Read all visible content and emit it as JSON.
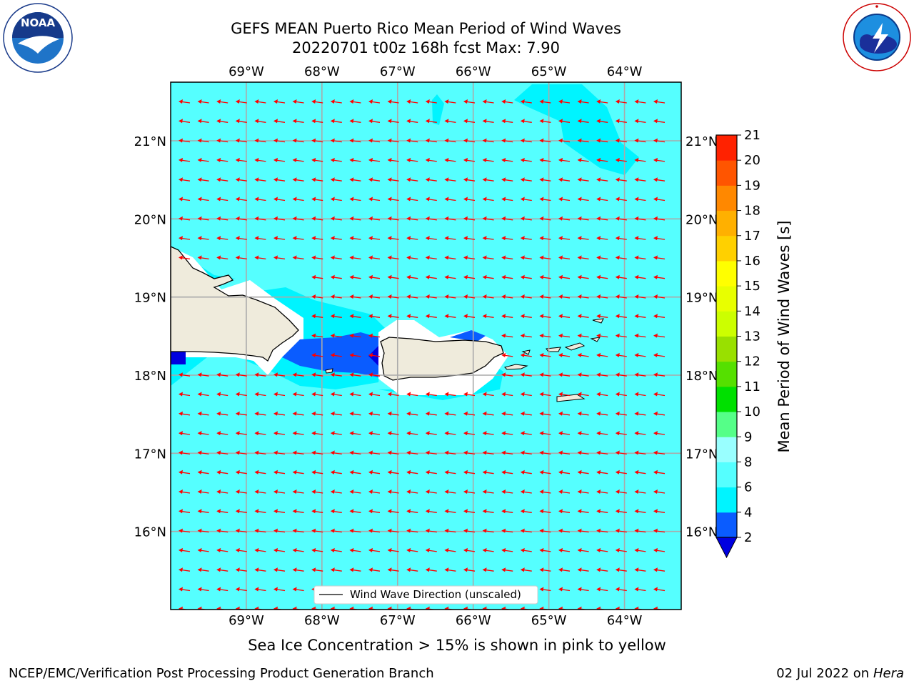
{
  "header": {
    "title": "GEFS MEAN Puerto Rico Mean Period of Wind Waves",
    "subtitle": "20220701 t00z 168h fcst   Max: 7.90"
  },
  "logos": {
    "left": {
      "icon": "noaa-logo-icon",
      "text": "NOAA",
      "ring_text": "NATIONAL OCEANIC AND ATMOSPHERIC ADMINISTRATION · U.S. DEPARTMENT OF COMMERCE"
    },
    "right": {
      "icon": "nws-logo-icon",
      "ring_text": "NATIONAL WEATHER SERVICE"
    }
  },
  "map": {
    "lon_labels": [
      "69°W",
      "68°W",
      "67°W",
      "66°W",
      "65°W",
      "64°W"
    ],
    "lat_labels": [
      "21°N",
      "20°N",
      "19°N",
      "18°N",
      "17°N",
      "16°N"
    ],
    "lon_values": [
      -69,
      -68,
      -67,
      -66,
      -65,
      -64
    ],
    "lat_values": [
      21,
      20,
      19,
      18,
      17,
      16
    ],
    "extent": {
      "lon_min": -70,
      "lon_max": -63.25,
      "lat_min": 15,
      "lat_max": 21.75
    },
    "legend_label": "Wind Wave Direction (unscaled)",
    "arrow_color": "#ff0000",
    "ocean_color": "#55ffff",
    "land_color": "#efebdc"
  },
  "colorbar": {
    "label": "Mean Period of Wind Waves [s]",
    "ticks": [
      "2",
      "4",
      "6",
      "8",
      "9",
      "10",
      "11",
      "12",
      "13",
      "14",
      "15",
      "16",
      "17",
      "18",
      "19",
      "20",
      "21"
    ],
    "colors": [
      "#0a5cff",
      "#00f4ff",
      "#55ffff",
      "#99ffff",
      "#55ff88",
      "#00e000",
      "#55e000",
      "#99e000",
      "#ccff00",
      "#e8ff00",
      "#ffff00",
      "#ffd000",
      "#ffb000",
      "#ff8800",
      "#ff5500",
      "#ff2200"
    ],
    "under_color": "#0000e0"
  },
  "notes": {
    "sea_ice": "Sea Ice Concentration > 15% is shown in pink to yellow"
  },
  "footer": {
    "left": "NCEP/EMC/Verification Post Processing Product Generation Branch",
    "right_date": "02 Jul 2022 on ",
    "right_host": "Hera"
  }
}
